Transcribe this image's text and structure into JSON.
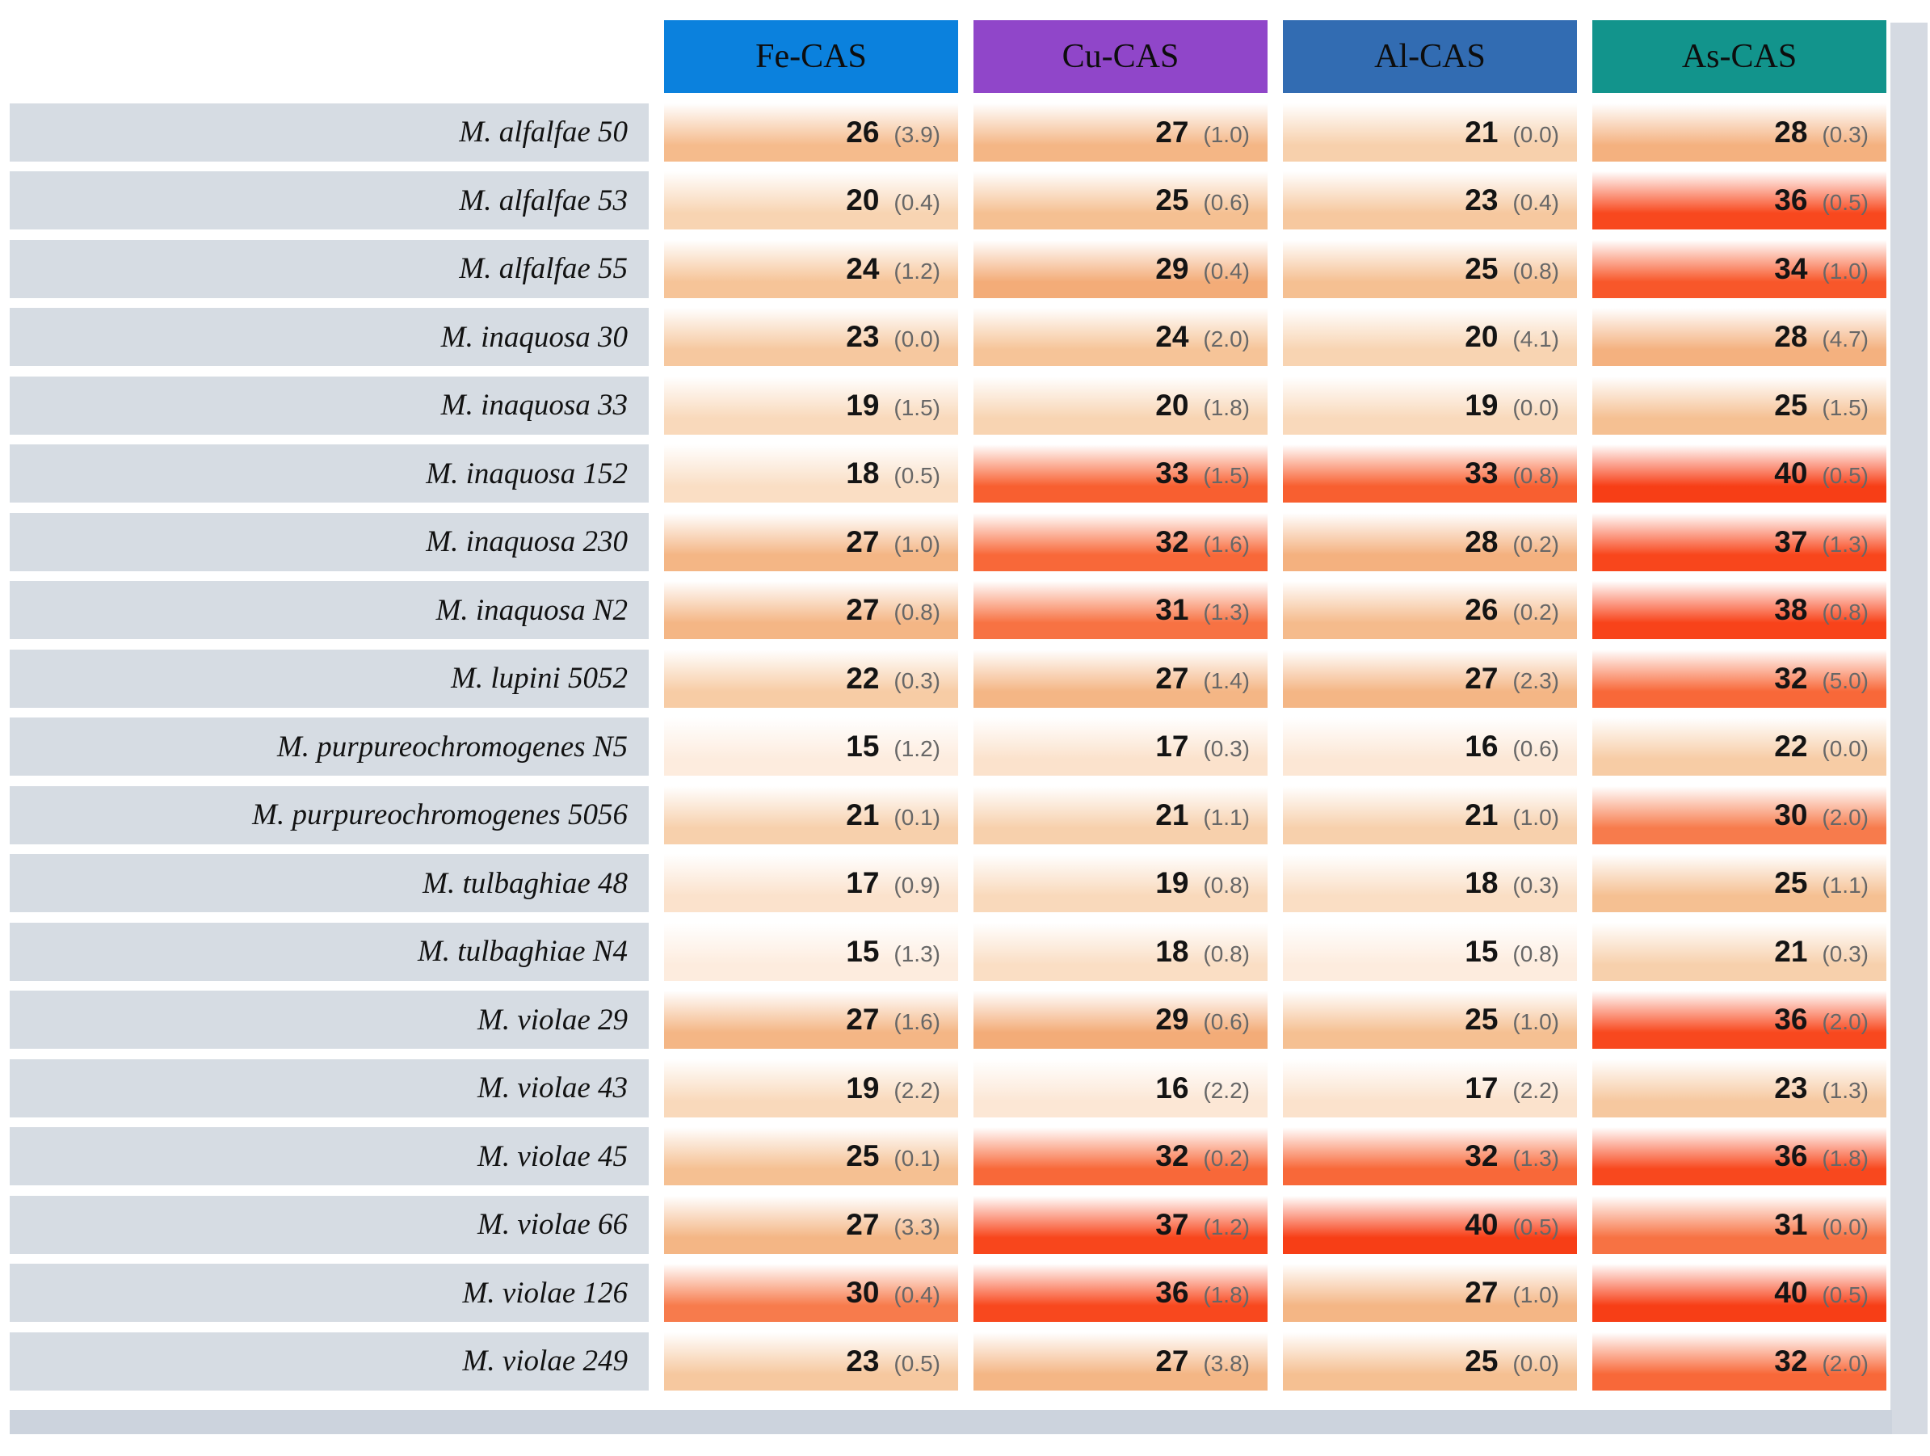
{
  "chart_data": {
    "type": "heatmap",
    "columns": [
      {
        "label": "Fe-CAS",
        "color": "#0b81dd"
      },
      {
        "label": "Cu-CAS",
        "color": "#9046c9"
      },
      {
        "label": "Al-CAS",
        "color": "#326cb2"
      },
      {
        "label": "As-CAS",
        "color": "#12948c"
      }
    ],
    "value_range": [
      15,
      40
    ],
    "rows": [
      {
        "label": "M. alfalfae 50",
        "values": [
          26,
          27,
          21,
          28
        ],
        "sd": [
          "3.9",
          "1.0",
          "0.0",
          "0.3"
        ]
      },
      {
        "label": "M. alfalfae 53",
        "values": [
          20,
          25,
          23,
          36
        ],
        "sd": [
          "0.4",
          "0.6",
          "0.4",
          "0.5"
        ]
      },
      {
        "label": "M. alfalfae 55",
        "values": [
          24,
          29,
          25,
          34
        ],
        "sd": [
          "1.2",
          "0.4",
          "0.8",
          "1.0"
        ]
      },
      {
        "label": "M. inaquosa 30",
        "values": [
          23,
          24,
          20,
          28
        ],
        "sd": [
          "0.0",
          "2.0",
          "4.1",
          "4.7"
        ]
      },
      {
        "label": "M. inaquosa 33",
        "values": [
          19,
          20,
          19,
          25
        ],
        "sd": [
          "1.5",
          "1.8",
          "0.0",
          "1.5"
        ]
      },
      {
        "label": "M. inaquosa 152",
        "values": [
          18,
          33,
          33,
          40
        ],
        "sd": [
          "0.5",
          "1.5",
          "0.8",
          "0.5"
        ]
      },
      {
        "label": "M. inaquosa 230",
        "values": [
          27,
          32,
          28,
          37
        ],
        "sd": [
          "1.0",
          "1.6",
          "0.2",
          "1.3"
        ]
      },
      {
        "label": "M. inaquosa N2",
        "values": [
          27,
          31,
          26,
          38
        ],
        "sd": [
          "0.8",
          "1.3",
          "0.2",
          "0.8"
        ]
      },
      {
        "label": "M. lupini 5052",
        "values": [
          22,
          27,
          27,
          32
        ],
        "sd": [
          "0.3",
          "1.4",
          "2.3",
          "5.0"
        ]
      },
      {
        "label": "M. purpureochromogenes N5",
        "values": [
          15,
          17,
          16,
          22
        ],
        "sd": [
          "1.2",
          "0.3",
          "0.6",
          "0.0"
        ]
      },
      {
        "label": "M. purpureochromogenes 5056",
        "values": [
          21,
          21,
          21,
          30
        ],
        "sd": [
          "0.1",
          "1.1",
          "1.0",
          "2.0"
        ]
      },
      {
        "label": "M. tulbaghiae 48",
        "values": [
          17,
          19,
          18,
          25
        ],
        "sd": [
          "0.9",
          "0.8",
          "0.3",
          "1.1"
        ]
      },
      {
        "label": "M. tulbaghiae N4",
        "values": [
          15,
          18,
          15,
          21
        ],
        "sd": [
          "1.3",
          "0.8",
          "0.8",
          "0.3"
        ]
      },
      {
        "label": "M. violae 29",
        "values": [
          27,
          29,
          25,
          36
        ],
        "sd": [
          "1.6",
          "0.6",
          "1.0",
          "2.0"
        ]
      },
      {
        "label": "M. violae 43",
        "values": [
          19,
          16,
          17,
          23
        ],
        "sd": [
          "2.2",
          "2.2",
          "2.2",
          "1.3"
        ]
      },
      {
        "label": "M. violae 45",
        "values": [
          25,
          32,
          32,
          36
        ],
        "sd": [
          "0.1",
          "0.2",
          "1.3",
          "1.8"
        ]
      },
      {
        "label": "M. violae 66",
        "values": [
          27,
          37,
          40,
          31
        ],
        "sd": [
          "3.3",
          "1.2",
          "0.5",
          "0.0"
        ]
      },
      {
        "label": "M. violae 126",
        "values": [
          30,
          36,
          27,
          40
        ],
        "sd": [
          "0.4",
          "1.8",
          "1.0",
          "0.5"
        ]
      },
      {
        "label": "M. violae 249",
        "values": [
          23,
          27,
          25,
          32
        ],
        "sd": [
          "0.5",
          "3.8",
          "0.0",
          "2.0"
        ]
      }
    ]
  },
  "colors": {
    "row_label_band": "#d6dce3",
    "edge_strip": "#d5dae2",
    "footer_bar": "#ccd3dd",
    "sd_text": "#676767",
    "heat_low": "#fdeede",
    "heat_high": "#f73e16"
  }
}
